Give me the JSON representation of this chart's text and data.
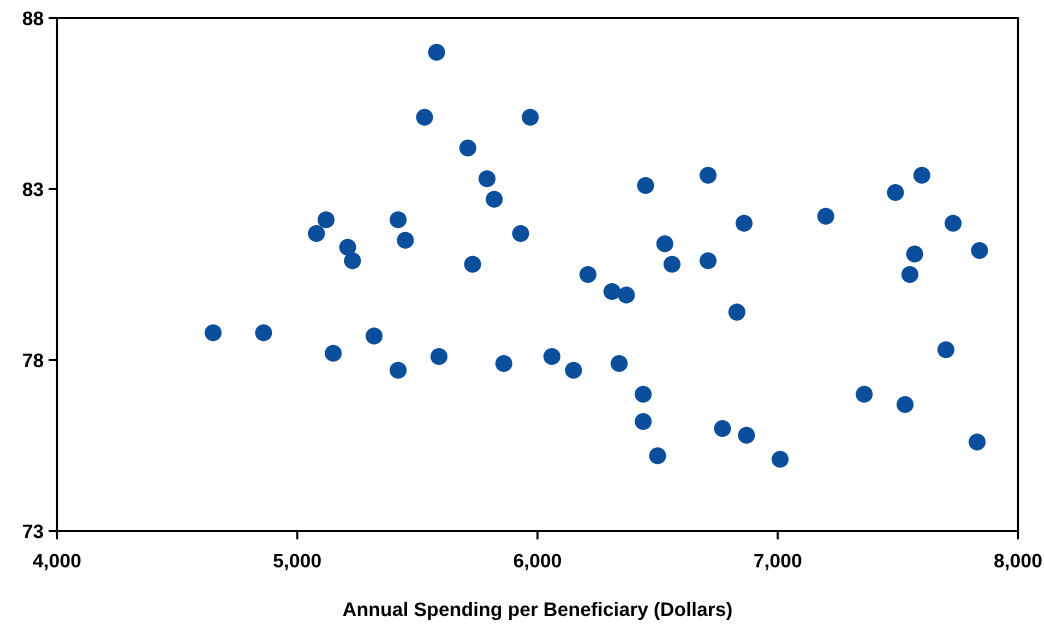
{
  "chart_data": {
    "type": "scatter",
    "xlabel": "Annual Spending per Beneficiary (Dollars)",
    "x": [
      4650,
      4860,
      5080,
      5120,
      5150,
      5210,
      5230,
      5320,
      5420,
      5420,
      5450,
      5530,
      5580,
      5590,
      5710,
      5730,
      5790,
      5820,
      5860,
      5930,
      5970,
      6060,
      6150,
      6210,
      6310,
      6340,
      6370,
      6440,
      6440,
      6450,
      6500,
      6530,
      6560,
      6710,
      6710,
      6770,
      6830,
      6860,
      6870,
      7010,
      7200,
      7360,
      7490,
      7530,
      7550,
      7570,
      7600,
      7700,
      7730,
      7830,
      7840
    ],
    "values": [
      78.8,
      78.8,
      81.7,
      82.1,
      78.2,
      81.3,
      80.9,
      78.7,
      82.1,
      77.7,
      81.5,
      85.1,
      87.0,
      78.1,
      84.2,
      80.8,
      83.3,
      82.7,
      77.9,
      81.7,
      85.1,
      78.1,
      77.7,
      80.5,
      80.0,
      77.9,
      79.9,
      77.0,
      76.2,
      83.1,
      75.2,
      81.4,
      80.8,
      83.4,
      80.9,
      76.0,
      79.4,
      82.0,
      75.8,
      75.1,
      82.2,
      77.0,
      82.9,
      76.7,
      80.5,
      81.1,
      83.4,
      78.3,
      82.0,
      75.6,
      81.2
    ],
    "color": "#0b4f9c",
    "marker": "circle",
    "xlim": [
      4000,
      8000
    ],
    "xticks": [
      {
        "value": 4000,
        "label": "4,000"
      },
      {
        "value": 5000,
        "label": "5,000"
      },
      {
        "value": 6000,
        "label": "6,000"
      },
      {
        "value": 7000,
        "label": "7,000"
      },
      {
        "value": 8000,
        "label": "8,000"
      }
    ],
    "ylim": [
      73,
      88
    ],
    "yticks": [
      73,
      78,
      83,
      88
    ],
    "grid": false
  }
}
